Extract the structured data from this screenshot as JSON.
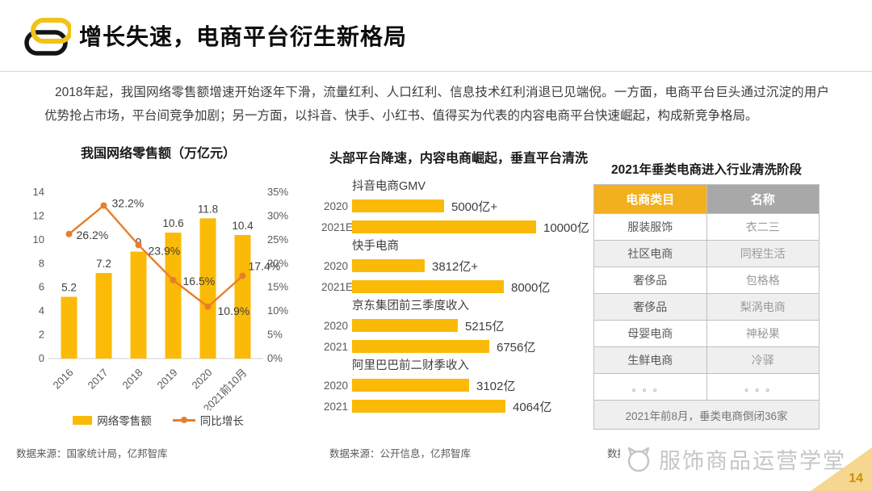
{
  "header": {
    "title": "增长失速，电商平台衍生新格局",
    "logo": "chain-links-logo"
  },
  "intro": "2018年起，我国网络零售额增速开始逐年下滑，流量红利、人口红利、信息技术红利消退已见端倪。一方面，电商平台巨头通过沉淀的用户优势抢占市场，平台间竞争加剧；另一方面，以抖音、快手、小红书、值得买为代表的内容电商平台快速崛起，构成新竞争格局。",
  "chart_data": [
    {
      "id": "online-retail",
      "type": "bar+line",
      "title": "我国网络零售额（万亿元）",
      "categories": [
        "2016",
        "2017",
        "2018",
        "2019",
        "2020",
        "2021前10月"
      ],
      "series": [
        {
          "name": "网络零售额",
          "type": "bar",
          "values": [
            5.2,
            7.2,
            9,
            10.6,
            11.8,
            10.4
          ],
          "labels": [
            "5.2",
            "7.2",
            "9",
            "10.6",
            "11.8",
            "10.4"
          ],
          "color": "#fbba07"
        },
        {
          "name": "同比增长",
          "type": "line",
          "values": [
            26.2,
            32.2,
            23.9,
            16.5,
            10.9,
            17.4
          ],
          "labels": [
            "26.2%",
            "32.2%",
            "23.9%",
            "16.5%",
            "10.9%",
            "17.4%"
          ],
          "color": "#e87e2a"
        }
      ],
      "left_axis": {
        "min": 0,
        "max": 14,
        "step": 2,
        "ticks": [
          "0",
          "2",
          "4",
          "6",
          "8",
          "10",
          "12",
          "14"
        ]
      },
      "right_axis": {
        "min": 0,
        "max": 35,
        "step": 5,
        "ticks": [
          "0%",
          "5%",
          "10%",
          "15%",
          "20%",
          "25%",
          "30%",
          "35%"
        ]
      },
      "grid": "off",
      "legend_position": "bottom",
      "source": "数据来源：国家统计局，亿邦智库"
    },
    {
      "id": "platform-speeds",
      "type": "bar",
      "orientation": "horizontal",
      "title": "头部平台降速，内容电商崛起，垂直平台清洗",
      "bar_color": "#fbba07",
      "groups": [
        {
          "label": "抖音电商GMV",
          "rows": [
            {
              "year": "2020",
              "value": 5000,
              "label": "5000亿+"
            },
            {
              "year": "2021E",
              "value": 10000,
              "label": "10000亿"
            }
          ]
        },
        {
          "label": "快手电商",
          "rows": [
            {
              "year": "2020",
              "value": 3812,
              "label": "3812亿+"
            },
            {
              "year": "2021E",
              "value": 8000,
              "label": "8000亿"
            }
          ]
        },
        {
          "label": "京东集团前三季度收入",
          "rows": [
            {
              "year": "2020",
              "value": 5215,
              "label": "5215亿"
            },
            {
              "year": "2021",
              "value": 6756,
              "label": "6756亿"
            }
          ]
        },
        {
          "label": "阿里巴巴前二财季收入",
          "rows": [
            {
              "year": "2020",
              "value": 3102,
              "label": "3102亿"
            },
            {
              "year": "2021",
              "value": 4064,
              "label": "4064亿"
            }
          ]
        }
      ],
      "source": "数据来源：公开信息，亿邦智库"
    },
    {
      "id": "vertical-ecommerce-table",
      "type": "table",
      "title": "2021年垂类电商进入行业清洗阶段",
      "columns": [
        "电商类目",
        "名称"
      ],
      "header_colors": {
        "category": "#f2af1e",
        "name": "#a8a8a8"
      },
      "rows": [
        [
          "服装服饰",
          "衣二三"
        ],
        [
          "社区电商",
          "同程生活"
        ],
        [
          "奢侈品",
          "包格格"
        ],
        [
          "奢侈品",
          "梨涡电商"
        ],
        [
          "母婴电商",
          "神秘果"
        ],
        [
          "生鲜电商",
          "冷驿"
        ],
        [
          "。。。",
          "。。。"
        ]
      ],
      "footer": "2021年前8月，垂类电商倒闭36家",
      "source_fragment": "数据来"
    }
  ],
  "watermark": {
    "text": "服饰商品运营学堂",
    "logo": "cat-face-logo"
  },
  "page": {
    "number": "14"
  },
  "colors": {
    "bar_yellow": "#fbba07",
    "line_orange": "#e87e2a",
    "table_header_yellow": "#f2af1e",
    "table_header_gray": "#a8a8a8",
    "corner_yellow": "#f6d78f"
  }
}
